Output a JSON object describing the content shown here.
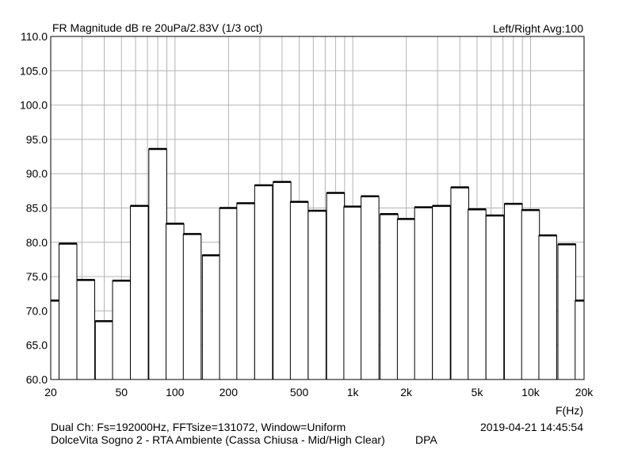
{
  "header": {
    "title": "FR Magnitude dB re 20uPa/2.83V (1/3 oct)",
    "channel_info": "Left/Right  Avg:100"
  },
  "footer": {
    "line1": "Dual Ch: Fs=192000Hz, FFTsize=131072, Window=Uniform",
    "line2": "DolceVita Sogno 2 - RTA Ambiente (Cassa Chiusa - Mid/High Clear)",
    "brand": "DPA",
    "timestamp": "2019-04-21  14:45:54",
    "xaxis_unit": "F(Hz)"
  },
  "chart_data": {
    "type": "bar",
    "title": "FR Magnitude dB re 20uPa/2.83V (1/3 oct)",
    "xlabel": "F(Hz)",
    "ylabel": "",
    "x_scale": "log",
    "xlim": [
      20,
      20000
    ],
    "ylim": [
      60,
      110
    ],
    "grid": true,
    "y_ticks": [
      "110.0",
      "105.0",
      "100.0",
      "95.0",
      "90.0",
      "85.0",
      "80.0",
      "75.0",
      "70.0",
      "65.0",
      "60.0"
    ],
    "x_ticks": [
      {
        "value": 20,
        "label": "20"
      },
      {
        "value": 50,
        "label": "50"
      },
      {
        "value": 100,
        "label": "100"
      },
      {
        "value": 200,
        "label": "200"
      },
      {
        "value": 500,
        "label": "500"
      },
      {
        "value": 1000,
        "label": "1k"
      },
      {
        "value": 2000,
        "label": "2k"
      },
      {
        "value": 5000,
        "label": "5k"
      },
      {
        "value": 10000,
        "label": "10k"
      },
      {
        "value": 20000,
        "label": "20k"
      }
    ],
    "categories": [
      "20",
      "25",
      "31.5",
      "40",
      "50",
      "63",
      "80",
      "100",
      "125",
      "160",
      "200",
      "250",
      "315",
      "400",
      "500",
      "630",
      "800",
      "1k",
      "1.25k",
      "1.6k",
      "2k",
      "2.5k",
      "3.15k",
      "4k",
      "5k",
      "6.3k",
      "8k",
      "10k",
      "12.5k",
      "16k",
      "20k"
    ],
    "center_freqs": [
      20,
      25,
      31.5,
      40,
      50,
      63,
      80,
      100,
      125,
      160,
      200,
      250,
      315,
      400,
      500,
      630,
      800,
      1000,
      1250,
      1600,
      2000,
      2500,
      3150,
      4000,
      5000,
      6300,
      8000,
      10000,
      12500,
      16000,
      20000
    ],
    "values": [
      71.5,
      79.8,
      74.5,
      68.5,
      74.4,
      85.3,
      93.6,
      82.7,
      81.2,
      78.1,
      85.0,
      85.7,
      88.3,
      88.8,
      85.9,
      84.6,
      87.2,
      85.2,
      86.7,
      84.1,
      83.4,
      85.1,
      85.3,
      88.0,
      84.8,
      83.9,
      85.6,
      84.7,
      81.0,
      79.7,
      71.5
    ]
  }
}
